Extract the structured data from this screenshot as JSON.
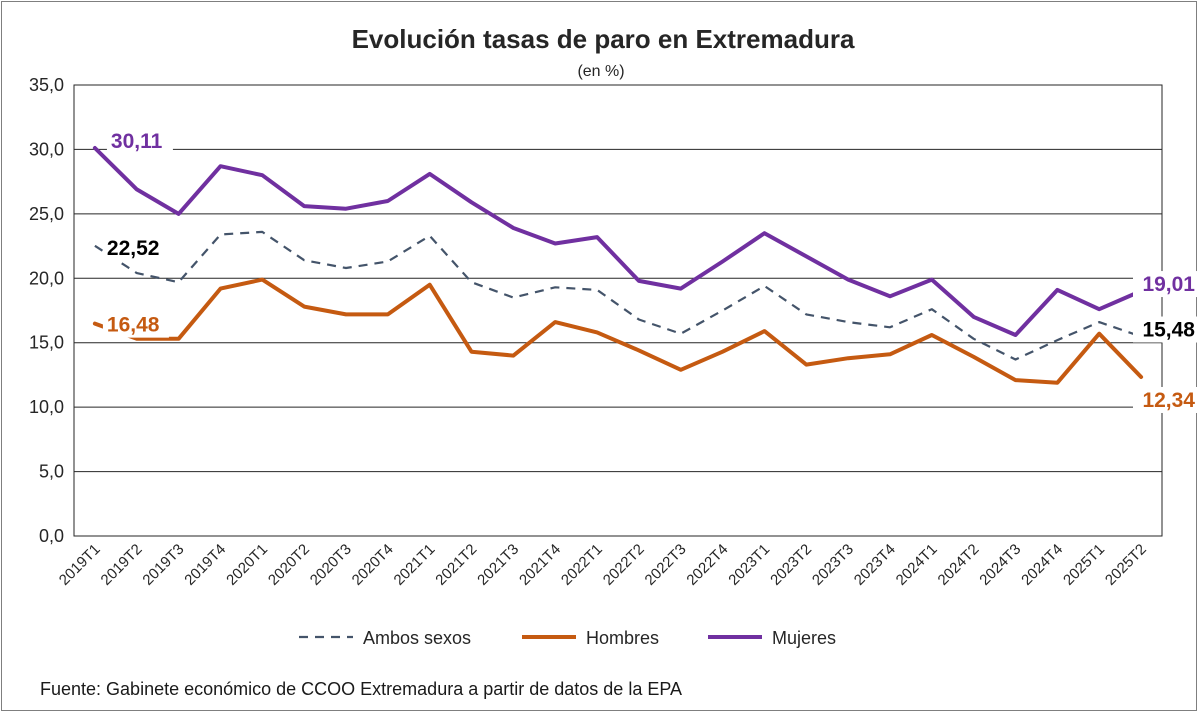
{
  "chart_data": {
    "type": "line",
    "title": "Evolución tasas de paro en Extremadura",
    "subtitle": "(en %)",
    "xlabel": "",
    "ylabel": "",
    "ylim": [
      0,
      35
    ],
    "yticks": [
      0,
      5,
      10,
      15,
      20,
      25,
      30,
      35
    ],
    "ytick_labels": [
      "0,0",
      "5,0",
      "10,0",
      "15,0",
      "20,0",
      "25,0",
      "30,0",
      "35,0"
    ],
    "grid": true,
    "legend_position": "bottom",
    "categories": [
      "2019T1",
      "2019T2",
      "2019T3",
      "2019T4",
      "2020T1",
      "2020T2",
      "2020T3",
      "2020T4",
      "2021T1",
      "2021T2",
      "2021T3",
      "2021T4",
      "2022T1",
      "2022T2",
      "2022T3",
      "2022T4",
      "2023T1",
      "2023T2",
      "2023T3",
      "2023T4",
      "2024T1",
      "2024T2",
      "2024T3",
      "2024T4",
      "2025T1",
      "2025T2"
    ],
    "series": [
      {
        "name": "Ambos sexos",
        "color": "#44546a",
        "style": "dashed",
        "values": [
          22.52,
          20.4,
          19.7,
          23.4,
          23.6,
          21.4,
          20.8,
          21.3,
          23.3,
          19.7,
          18.5,
          19.3,
          19.1,
          16.8,
          15.7,
          17.5,
          19.4,
          17.2,
          16.6,
          16.2,
          17.6,
          15.3,
          13.7,
          15.2,
          16.6,
          15.48
        ],
        "labels": [
          {
            "index": 0,
            "text": "22,52"
          },
          {
            "index": 25,
            "text": "15,48"
          }
        ]
      },
      {
        "name": "Hombres",
        "color": "#c55a11",
        "style": "solid",
        "values": [
          16.48,
          15.3,
          15.3,
          19.2,
          19.9,
          17.8,
          17.2,
          17.2,
          19.5,
          14.3,
          14.0,
          16.6,
          15.8,
          14.4,
          12.9,
          14.3,
          15.9,
          13.3,
          13.8,
          14.1,
          15.6,
          13.9,
          12.1,
          11.9,
          15.7,
          12.34
        ],
        "labels": [
          {
            "index": 0,
            "text": "16,48"
          },
          {
            "index": 25,
            "text": "12,34"
          }
        ]
      },
      {
        "name": "Mujeres",
        "color": "#7030a0",
        "style": "solid",
        "values": [
          30.11,
          26.9,
          25.0,
          28.7,
          28.0,
          25.6,
          25.4,
          26.0,
          28.1,
          25.9,
          23.9,
          22.7,
          23.2,
          19.8,
          19.2,
          21.3,
          23.5,
          21.7,
          19.9,
          18.6,
          19.9,
          17.0,
          15.6,
          19.1,
          17.6,
          19.01
        ],
        "labels": [
          {
            "index": 0,
            "text": "30,11"
          },
          {
            "index": 25,
            "text": "19,01"
          }
        ]
      }
    ]
  },
  "source": "Fuente: Gabinete económico de CCOO Extremadura a partir de datos de la EPA"
}
